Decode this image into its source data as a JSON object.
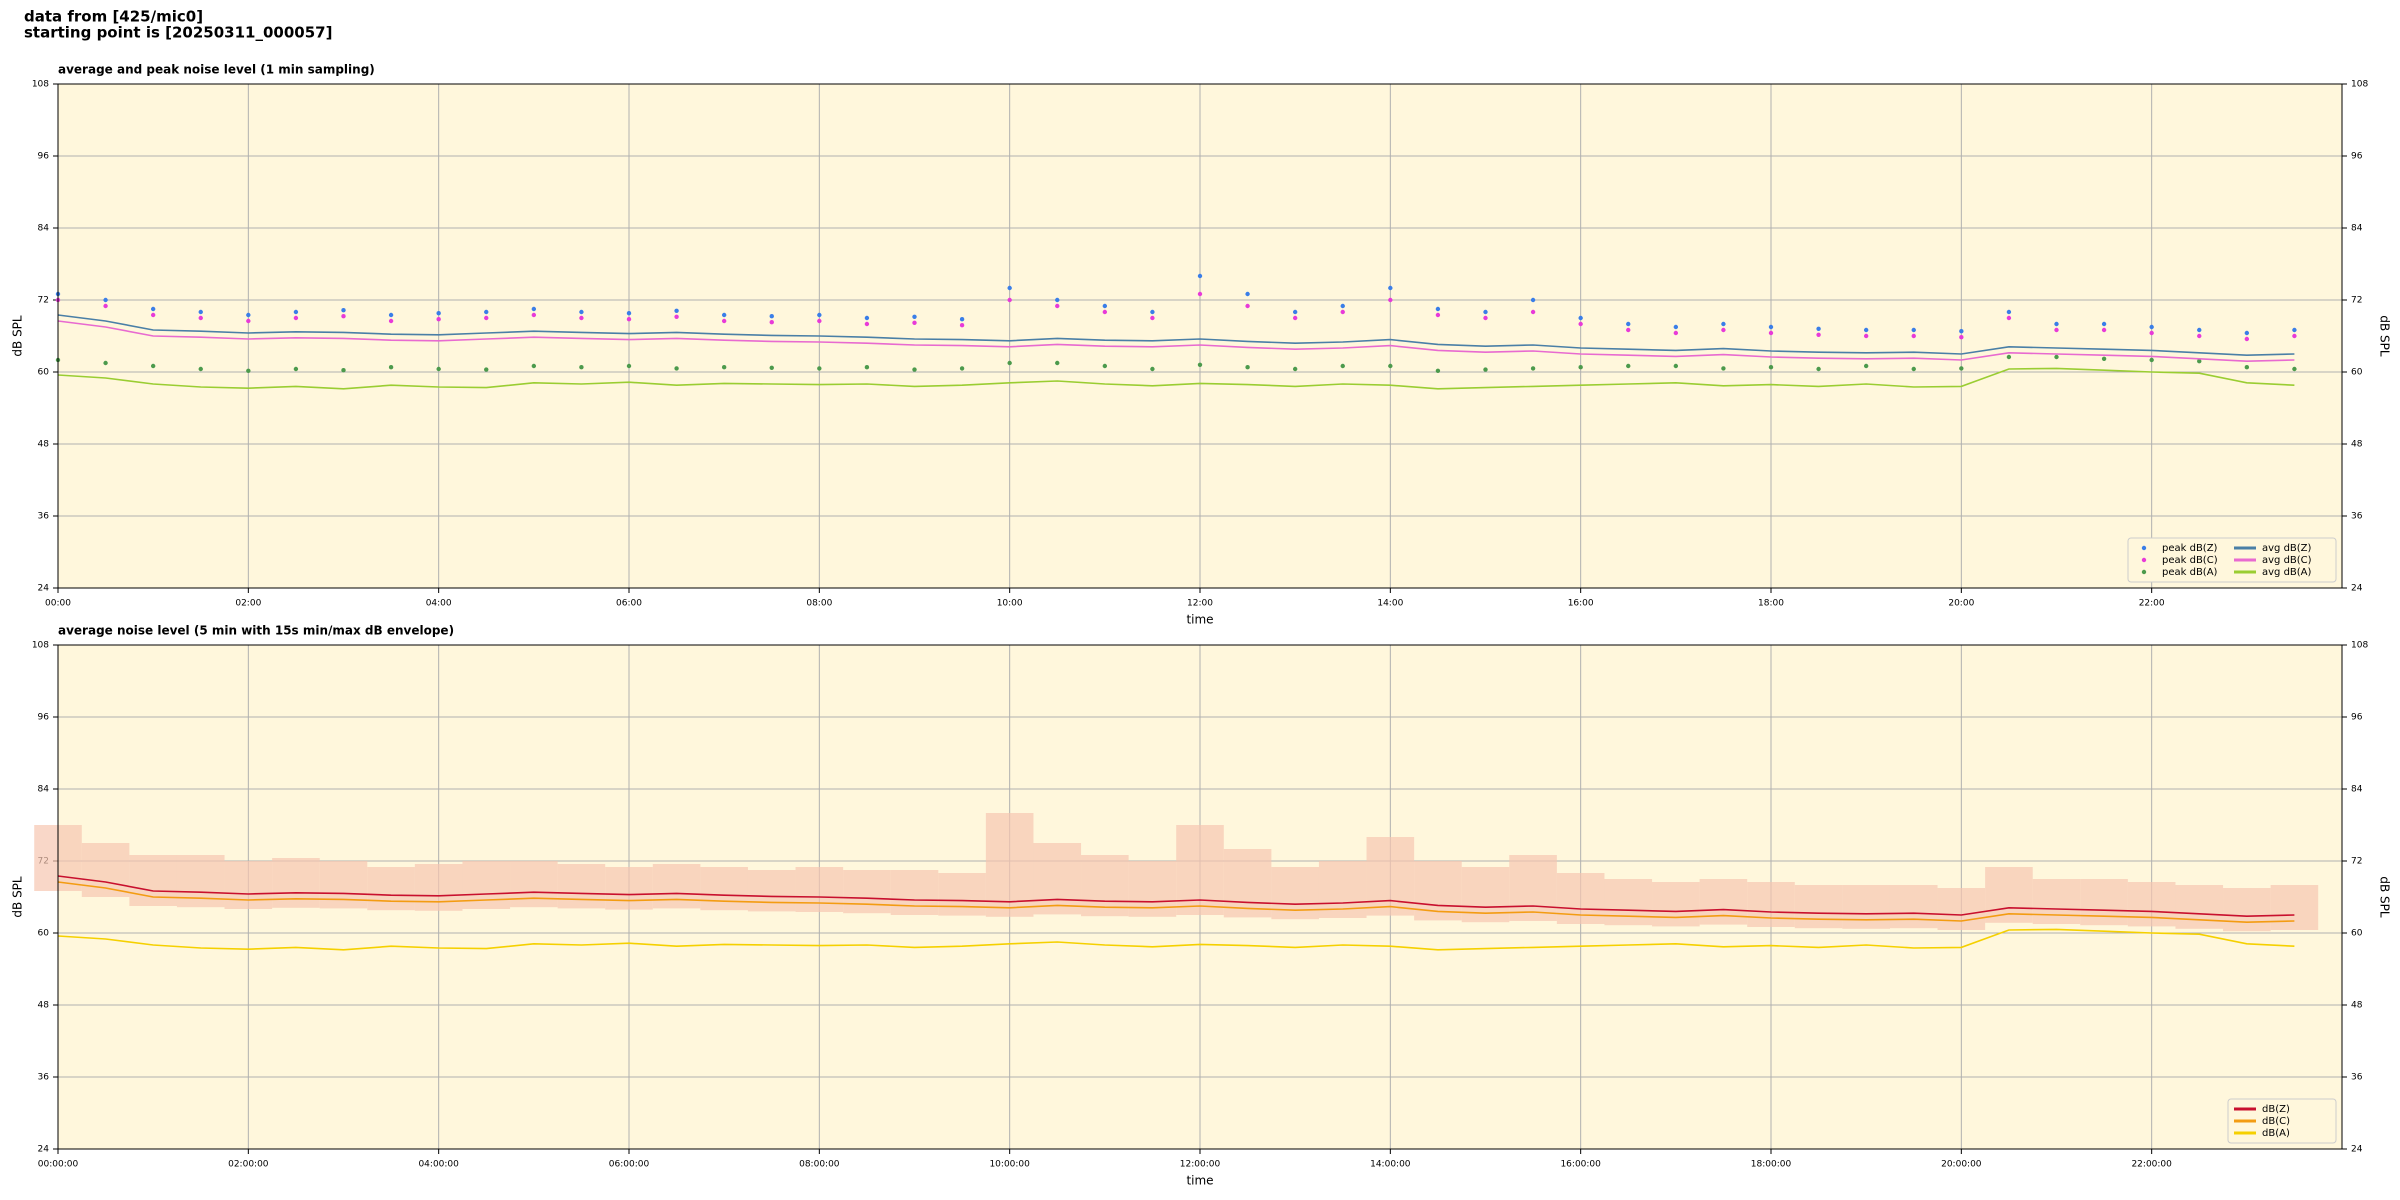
{
  "header": {
    "lines": [
      "data from [425/mic0]",
      "starting point is [20250311_000057]"
    ]
  },
  "chart_data": [
    {
      "type": "line",
      "title": "average and peak noise level (1 min sampling)",
      "xlabel": "time",
      "ylabel": "dB SPL",
      "background": "#fff7dc",
      "grid": true,
      "legend": "lower right",
      "legend_columns": 2,
      "xlim": [
        0,
        24
      ],
      "ylim": [
        24,
        108
      ],
      "yticks": [
        24,
        36,
        48,
        60,
        72,
        84,
        96,
        108
      ],
      "xticks": [
        {
          "value": 0,
          "label": "00:00"
        },
        {
          "value": 2,
          "label": "02:00"
        },
        {
          "value": 4,
          "label": "04:00"
        },
        {
          "value": 6,
          "label": "06:00"
        },
        {
          "value": 8,
          "label": "08:00"
        },
        {
          "value": 10,
          "label": "10:00"
        },
        {
          "value": 12,
          "label": "12:00"
        },
        {
          "value": 14,
          "label": "14:00"
        },
        {
          "value": 16,
          "label": "16:00"
        },
        {
          "value": 18,
          "label": "18:00"
        },
        {
          "value": 20,
          "label": "20:00"
        },
        {
          "value": 22,
          "label": "22:00"
        }
      ],
      "x": [
        0,
        0.5,
        1,
        1.5,
        2,
        2.5,
        3,
        3.5,
        4,
        4.5,
        5,
        5.5,
        6,
        6.5,
        7,
        7.5,
        8,
        8.5,
        9,
        9.5,
        10,
        10.5,
        11,
        11.5,
        12,
        12.5,
        13,
        13.5,
        14,
        14.5,
        15,
        15.5,
        16,
        16.5,
        17,
        17.5,
        18,
        18.5,
        19,
        19.5,
        20,
        20.5,
        21,
        21.5,
        22,
        22.5,
        23,
        23.5
      ],
      "series": [
        {
          "name": "peak dB(Z)",
          "style": "scatter",
          "color": "#3a7ee8",
          "values": [
            73,
            72,
            70.5,
            70,
            69.5,
            70,
            70.3,
            69.5,
            69.8,
            70,
            70.5,
            70,
            69.8,
            70.2,
            69.5,
            69.3,
            69.5,
            69,
            69.2,
            68.8,
            74,
            72,
            71,
            70,
            76,
            73,
            70,
            71,
            74,
            70.5,
            70,
            72,
            69,
            68,
            67.5,
            68,
            67.5,
            67.2,
            67,
            67,
            66.8,
            70,
            68,
            68,
            67.5,
            67,
            66.5,
            67
          ]
        },
        {
          "name": "peak dB(C)",
          "style": "scatter",
          "color": "#e83ad8",
          "values": [
            72,
            71,
            69.5,
            69,
            68.5,
            69,
            69.3,
            68.5,
            68.8,
            69,
            69.5,
            69,
            68.8,
            69.2,
            68.5,
            68.3,
            68.5,
            68,
            68.2,
            67.8,
            72,
            71,
            70,
            69,
            73,
            71,
            69,
            70,
            72,
            69.5,
            69,
            70,
            68,
            67,
            66.5,
            67,
            66.5,
            66.2,
            66,
            66,
            65.8,
            69,
            67,
            67,
            66.5,
            66,
            65.5,
            66
          ]
        },
        {
          "name": "peak dB(A)",
          "style": "scatter",
          "color": "#4c9a4c",
          "values": [
            62,
            61.5,
            61,
            60.5,
            60.2,
            60.5,
            60.3,
            60.8,
            60.5,
            60.4,
            61,
            60.8,
            61,
            60.6,
            60.8,
            60.7,
            60.6,
            60.8,
            60.4,
            60.6,
            61.5,
            61.5,
            61,
            60.5,
            61.2,
            60.8,
            60.5,
            61,
            61,
            60.2,
            60.4,
            60.6,
            60.8,
            61,
            61,
            60.6,
            60.8,
            60.5,
            61,
            60.5,
            60.6,
            62.5,
            62.5,
            62.2,
            62,
            61.8,
            60.8,
            60.5
          ]
        },
        {
          "name": "avg dB(Z)",
          "style": "line",
          "color": "#4a7fa6",
          "values": [
            69.5,
            68.5,
            67,
            66.8,
            66.5,
            66.7,
            66.6,
            66.3,
            66.2,
            66.5,
            66.8,
            66.6,
            66.4,
            66.6,
            66.3,
            66.1,
            66,
            65.8,
            65.5,
            65.4,
            65.2,
            65.6,
            65.3,
            65.2,
            65.5,
            65.1,
            64.8,
            65,
            65.4,
            64.6,
            64.3,
            64.5,
            64,
            63.8,
            63.6,
            63.9,
            63.5,
            63.3,
            63.2,
            63.3,
            63,
            64.2,
            64,
            63.8,
            63.6,
            63.2,
            62.8,
            63
          ]
        },
        {
          "name": "avg dB(C)",
          "style": "line",
          "color": "#e86ad0",
          "values": [
            68.5,
            67.5,
            66,
            65.8,
            65.5,
            65.7,
            65.6,
            65.3,
            65.2,
            65.5,
            65.8,
            65.6,
            65.4,
            65.6,
            65.3,
            65.1,
            65,
            64.8,
            64.5,
            64.4,
            64.2,
            64.6,
            64.3,
            64.2,
            64.5,
            64.1,
            63.8,
            64,
            64.4,
            63.6,
            63.3,
            63.5,
            63,
            62.8,
            62.6,
            62.9,
            62.5,
            62.3,
            62.2,
            62.3,
            62,
            63.2,
            63,
            62.8,
            62.6,
            62.2,
            61.8,
            62
          ]
        },
        {
          "name": "avg dB(A)",
          "style": "line",
          "color": "#9acd32",
          "values": [
            59.5,
            59,
            58,
            57.5,
            57.3,
            57.6,
            57.2,
            57.8,
            57.5,
            57.4,
            58.2,
            58,
            58.3,
            57.8,
            58.1,
            58,
            57.9,
            58,
            57.6,
            57.8,
            58.2,
            58.5,
            58,
            57.7,
            58.1,
            57.9,
            57.6,
            58,
            57.8,
            57.2,
            57.4,
            57.6,
            57.8,
            58,
            58.2,
            57.7,
            57.9,
            57.6,
            58,
            57.5,
            57.6,
            60.5,
            60.6,
            60.3,
            60,
            59.8,
            58.2,
            57.8
          ]
        }
      ]
    },
    {
      "type": "line",
      "title": "average noise level (5 min with 15s min/max dB envelope)",
      "xlabel": "time",
      "ylabel": "dB SPL",
      "background": "#fff7dc",
      "grid": true,
      "legend": "lower right",
      "legend_columns": 1,
      "xlim": [
        0,
        24
      ],
      "ylim": [
        24,
        108
      ],
      "yticks": [
        24,
        36,
        48,
        60,
        72,
        84,
        96,
        108
      ],
      "xticks": [
        {
          "value": 0,
          "label": "00:00:00"
        },
        {
          "value": 2,
          "label": "02:00:00"
        },
        {
          "value": 4,
          "label": "04:00:00"
        },
        {
          "value": 6,
          "label": "06:00:00"
        },
        {
          "value": 8,
          "label": "08:00:00"
        },
        {
          "value": 10,
          "label": "10:00:00"
        },
        {
          "value": 12,
          "label": "12:00:00"
        },
        {
          "value": 14,
          "label": "14:00:00"
        },
        {
          "value": 16,
          "label": "16:00:00"
        },
        {
          "value": 18,
          "label": "18:00:00"
        },
        {
          "value": 20,
          "label": "20:00:00"
        },
        {
          "value": 22,
          "label": "22:00:00"
        }
      ],
      "x": [
        0,
        0.5,
        1,
        1.5,
        2,
        2.5,
        3,
        3.5,
        4,
        4.5,
        5,
        5.5,
        6,
        6.5,
        7,
        7.5,
        8,
        8.5,
        9,
        9.5,
        10,
        10.5,
        11,
        11.5,
        12,
        12.5,
        13,
        13.5,
        14,
        14.5,
        15,
        15.5,
        16,
        16.5,
        17,
        17.5,
        18,
        18.5,
        19,
        19.5,
        20,
        20.5,
        21,
        21.5,
        22,
        22.5,
        23,
        23.5
      ],
      "envelope": {
        "color": "#f7c6b0",
        "low": [
          67,
          66,
          64.5,
          64.3,
          64,
          64.2,
          64.1,
          63.8,
          63.7,
          64,
          64.3,
          64.1,
          63.9,
          64.1,
          63.8,
          63.6,
          63.5,
          63.3,
          63,
          62.9,
          62.7,
          63.1,
          62.8,
          62.7,
          63,
          62.6,
          62.3,
          62.5,
          62.9,
          62.1,
          61.8,
          62,
          61.5,
          61.3,
          61.1,
          61.4,
          61,
          60.8,
          60.7,
          60.8,
          60.5,
          61.7,
          61.5,
          61.3,
          61.1,
          60.7,
          60.3,
          60.5
        ],
        "high": [
          78,
          75,
          73,
          73,
          72,
          72.5,
          72,
          71,
          71.5,
          72,
          72,
          71.5,
          71,
          71.5,
          71,
          70.5,
          71,
          70.5,
          70.5,
          70,
          80,
          75,
          73,
          72,
          78,
          74,
          71,
          72,
          76,
          72,
          71,
          73,
          70,
          69,
          68.5,
          69,
          68.5,
          68,
          68,
          68,
          67.5,
          71,
          69,
          69,
          68.5,
          68,
          67.5,
          68
        ]
      },
      "series": [
        {
          "name": "dB(Z)",
          "style": "line",
          "color": "#c8102e",
          "values": [
            69.5,
            68.5,
            67,
            66.8,
            66.5,
            66.7,
            66.6,
            66.3,
            66.2,
            66.5,
            66.8,
            66.6,
            66.4,
            66.6,
            66.3,
            66.1,
            66,
            65.8,
            65.5,
            65.4,
            65.2,
            65.6,
            65.3,
            65.2,
            65.5,
            65.1,
            64.8,
            65,
            65.4,
            64.6,
            64.3,
            64.5,
            64,
            63.8,
            63.6,
            63.9,
            63.5,
            63.3,
            63.2,
            63.3,
            63,
            64.2,
            64,
            63.8,
            63.6,
            63.2,
            62.8,
            63
          ]
        },
        {
          "name": "dB(C)",
          "style": "line",
          "color": "#f39c12",
          "values": [
            68.5,
            67.5,
            66,
            65.8,
            65.5,
            65.7,
            65.6,
            65.3,
            65.2,
            65.5,
            65.8,
            65.6,
            65.4,
            65.6,
            65.3,
            65.1,
            65,
            64.8,
            64.5,
            64.4,
            64.2,
            64.6,
            64.3,
            64.2,
            64.5,
            64.1,
            63.8,
            64,
            64.4,
            63.6,
            63.3,
            63.5,
            63,
            62.8,
            62.6,
            62.9,
            62.5,
            62.3,
            62.2,
            62.3,
            62,
            63.2,
            63,
            62.8,
            62.6,
            62.2,
            61.8,
            62
          ]
        },
        {
          "name": "dB(A)",
          "style": "line",
          "color": "#f5d000",
          "values": [
            59.5,
            59,
            58,
            57.5,
            57.3,
            57.6,
            57.2,
            57.8,
            57.5,
            57.4,
            58.2,
            58,
            58.3,
            57.8,
            58.1,
            58,
            57.9,
            58,
            57.6,
            57.8,
            58.2,
            58.5,
            58,
            57.7,
            58.1,
            57.9,
            57.6,
            58,
            57.8,
            57.2,
            57.4,
            57.6,
            57.8,
            58,
            58.2,
            57.7,
            57.9,
            57.6,
            58,
            57.5,
            57.6,
            60.5,
            60.6,
            60.3,
            60,
            59.8,
            58.2,
            57.8
          ]
        }
      ]
    }
  ]
}
